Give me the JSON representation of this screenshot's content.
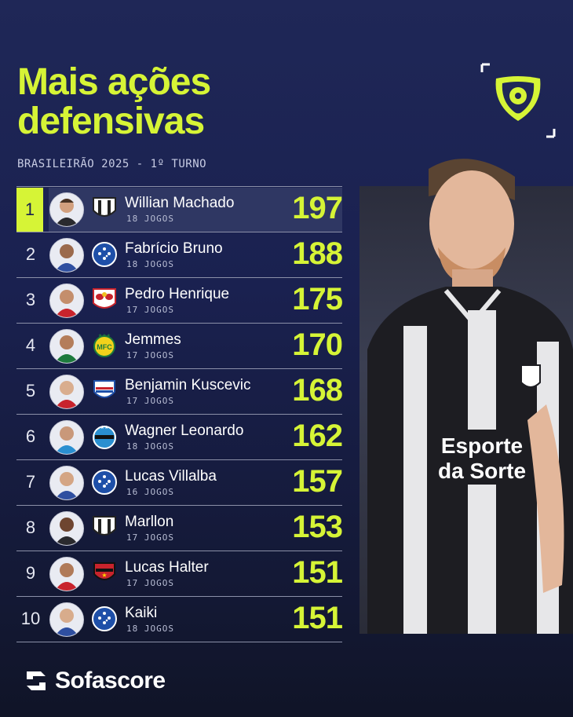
{
  "header": {
    "title_line1": "Mais ações",
    "title_line2": "defensivas",
    "subtitle": "BRASILEIRÃO 2025 - 1º TURNO"
  },
  "colors": {
    "accent": "#d6f436",
    "background": "#1a2150"
  },
  "players": [
    {
      "rank": "1",
      "name": "Willian Machado",
      "games": "18 JOGOS",
      "value": "197",
      "crest": "ceara-crest"
    },
    {
      "rank": "2",
      "name": "Fabrício Bruno",
      "games": "18 JOGOS",
      "value": "188",
      "crest": "cruzeiro-crest"
    },
    {
      "rank": "3",
      "name": "Pedro Henrique",
      "games": "17 JOGOS",
      "value": "175",
      "crest": "bragantino-crest"
    },
    {
      "rank": "4",
      "name": "Jemmes",
      "games": "17 JOGOS",
      "value": "170",
      "crest": "mirassol-crest"
    },
    {
      "rank": "5",
      "name": "Benjamin Kuscevic",
      "games": "17 JOGOS",
      "value": "168",
      "crest": "fortaleza-crest"
    },
    {
      "rank": "6",
      "name": "Wagner Leonardo",
      "games": "18 JOGOS",
      "value": "162",
      "crest": "gremio-crest"
    },
    {
      "rank": "7",
      "name": "Lucas Villalba",
      "games": "16 JOGOS",
      "value": "157",
      "crest": "cruzeiro-crest"
    },
    {
      "rank": "8",
      "name": "Marllon",
      "games": "17 JOGOS",
      "value": "153",
      "crest": "ceara-crest"
    },
    {
      "rank": "9",
      "name": "Lucas Halter",
      "games": "17 JOGOS",
      "value": "151",
      "crest": "vitoria-crest"
    },
    {
      "rank": "10",
      "name": "Kaiki",
      "games": "18 JOGOS",
      "value": "151",
      "crest": "cruzeiro-crest"
    }
  ],
  "footer": {
    "brand": "Sofascore"
  }
}
